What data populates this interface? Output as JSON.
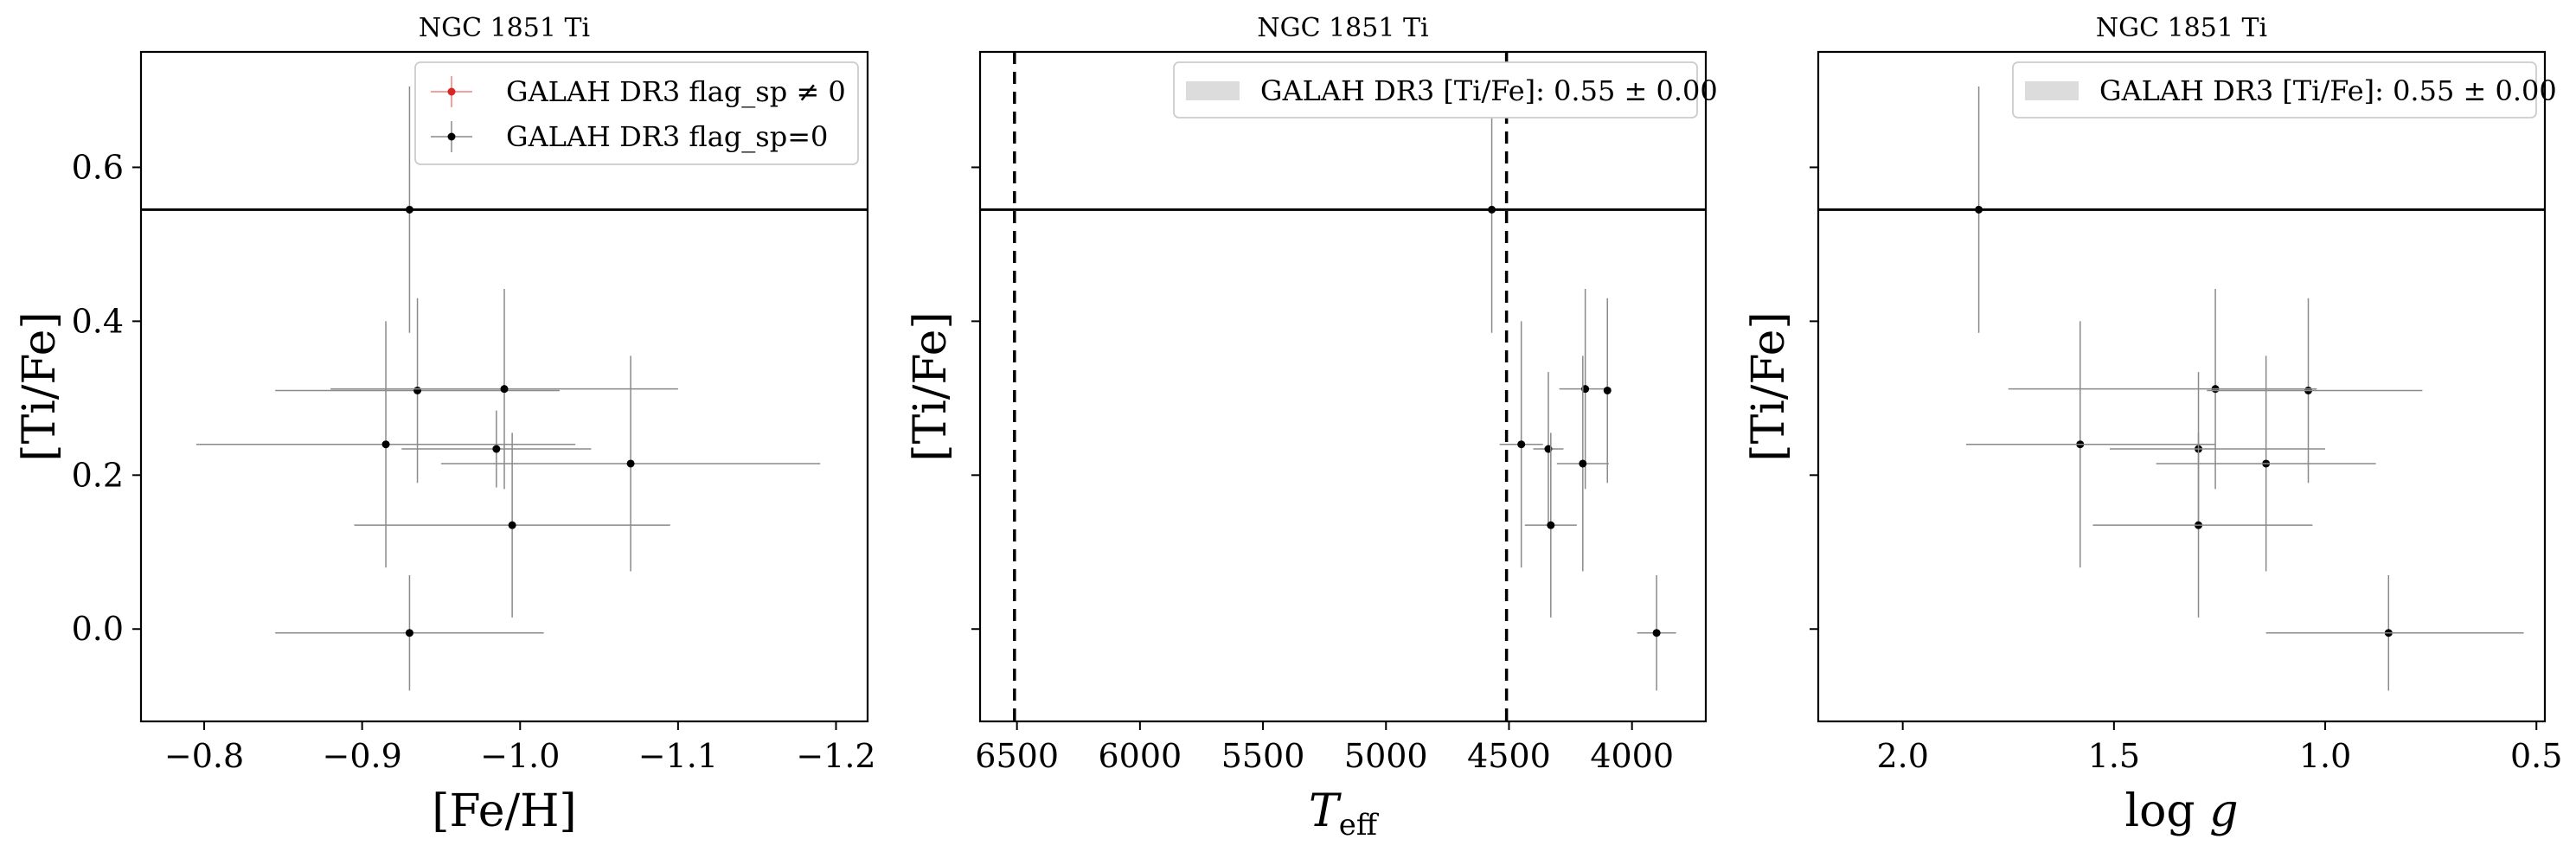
{
  "figure": {
    "panels": [
      {
        "title": "NGC 1851 Ti",
        "xlabel": "[Fe/H]",
        "ylabel": "[Ti/Fe]",
        "legend": [
          {
            "label": "GALAH DR3 flag_sp ≠ 0",
            "marker": "red-point-errorbar"
          },
          {
            "label": "GALAH DR3 flag_sp=0",
            "marker": "black-point-errorbar"
          }
        ]
      },
      {
        "title": "NGC 1851 Ti",
        "xlabel": "Teff",
        "ylabel": "[Ti/Fe]",
        "legend": [
          {
            "label": "GALAH DR3 [Ti/Fe]: 0.55 ± 0.00",
            "marker": "grey-band"
          }
        ]
      },
      {
        "title": "NGC 1851 Ti",
        "xlabel": "log g",
        "ylabel": "[Ti/Fe]",
        "legend": [
          {
            "label": "GALAH DR3 [Ti/Fe]: 0.55 ± 0.00",
            "marker": "grey-band"
          }
        ]
      }
    ]
  },
  "chart_data": [
    {
      "type": "scatter",
      "title": "NGC 1851 Ti",
      "xlabel": "[Fe/H]",
      "ylabel": "[Ti/Fe]",
      "xlim": [
        -0.76,
        -1.22
      ],
      "ylim": [
        -0.12,
        0.75
      ],
      "x_inverted": true,
      "xticks": [
        -0.8,
        -0.9,
        -1.0,
        -1.1,
        -1.2
      ],
      "xtick_labels": [
        "−0.8",
        "−0.9",
        "−1.0",
        "−1.1",
        "−1.2"
      ],
      "yticks": [
        0.0,
        0.2,
        0.4,
        0.6
      ],
      "ytick_labels": [
        "0.0",
        "0.2",
        "0.4",
        "0.6"
      ],
      "hline": 0.545,
      "legend_position": "top-right",
      "series": [
        {
          "name": "GALAH DR3 flag_sp=0",
          "color": "#000000",
          "points": [
            {
              "x": -0.93,
              "y": 0.545,
              "xerr": 0.0,
              "yerr": 0.16
            },
            {
              "x": -0.935,
              "y": 0.31,
              "xerr": 0.09,
              "yerr": 0.12
            },
            {
              "x": -0.99,
              "y": 0.312,
              "xerr": 0.11,
              "yerr": 0.13
            },
            {
              "x": -0.915,
              "y": 0.24,
              "xerr": 0.12,
              "yerr": 0.16
            },
            {
              "x": -0.985,
              "y": 0.234,
              "xerr": 0.06,
              "yerr": 0.05
            },
            {
              "x": -1.07,
              "y": 0.215,
              "xerr": 0.12,
              "yerr": 0.14
            },
            {
              "x": -0.995,
              "y": 0.135,
              "xerr": 0.1,
              "yerr": 0.12
            },
            {
              "x": -0.93,
              "y": -0.005,
              "xerr": 0.085,
              "yerr": 0.075
            }
          ]
        }
      ]
    },
    {
      "type": "scatter",
      "title": "NGC 1851 Ti",
      "xlabel": "Teff",
      "ylabel": "[Ti/Fe]",
      "xlim": [
        6650,
        3700
      ],
      "ylim": [
        -0.12,
        0.75
      ],
      "x_inverted": true,
      "xticks": [
        6500,
        6000,
        5500,
        5000,
        4500,
        4000
      ],
      "xtick_labels": [
        "6500",
        "6000",
        "5500",
        "5000",
        "4500",
        "4000"
      ],
      "hline": 0.545,
      "vlines": [
        6510,
        4510
      ],
      "legend_position": "top-right",
      "series": [
        {
          "name": "GALAH DR3 flag_sp=0",
          "color": "#000000",
          "points": [
            {
              "x": 4570,
              "y": 0.545,
              "xerr": 0.0,
              "yerr": 0.16
            },
            {
              "x": 4190,
              "y": 0.312,
              "xerr": 0.12,
              "yerr": 0.13
            },
            {
              "x": 4100,
              "y": 0.31,
              "xerr": 0.0,
              "yerr": 0.12
            },
            {
              "x": 4450,
              "y": 0.24,
              "xerr": 0.1,
              "yerr": 0.16
            },
            {
              "x": 4340,
              "y": 0.234,
              "xerr": 0.07,
              "yerr": 0.1
            },
            {
              "x": 4200,
              "y": 0.215,
              "xerr": 0.12,
              "yerr": 0.14
            },
            {
              "x": 4330,
              "y": 0.135,
              "xerr": 0.12,
              "yerr": 0.12
            },
            {
              "x": 3900,
              "y": -0.005,
              "xerr": 0.09,
              "yerr": 0.075
            }
          ]
        }
      ]
    },
    {
      "type": "scatter",
      "title": "NGC 1851 Ti",
      "xlabel": "log g",
      "ylabel": "[Ti/Fe]",
      "xlim": [
        2.2,
        0.48
      ],
      "ylim": [
        -0.12,
        0.75
      ],
      "x_inverted": true,
      "xticks": [
        2.0,
        1.5,
        1.0,
        0.5
      ],
      "xtick_labels": [
        "2.0",
        "1.5",
        "1.0",
        "0.5"
      ],
      "hline": 0.545,
      "legend_position": "top-right",
      "series": [
        {
          "name": "GALAH DR3 flag_sp=0",
          "color": "#000000",
          "points": [
            {
              "x": 1.82,
              "y": 0.545,
              "xerr": 0.0,
              "yerr": 0.16
            },
            {
              "x": 1.26,
              "y": 0.312,
              "xerr": 0.0,
              "yerr": 0.13
            },
            {
              "x": 1.04,
              "y": 0.31,
              "xerr": 0.0,
              "yerr": 0.12
            },
            {
              "x": 1.58,
              "y": 0.24,
              "xerr": 0.0,
              "yerr": 0.16
            },
            {
              "x": 1.3,
              "y": 0.234,
              "xerr": 0.0,
              "yerr": 0.1
            },
            {
              "x": 1.14,
              "y": 0.215,
              "xerr": 0.0,
              "yerr": 0.14
            },
            {
              "x": 1.3,
              "y": 0.135,
              "xerr": 0.0,
              "yerr": 0.12
            },
            {
              "x": 0.85,
              "y": -0.005,
              "xerr": 0.0,
              "yerr": 0.075
            }
          ]
        }
      ]
    }
  ]
}
